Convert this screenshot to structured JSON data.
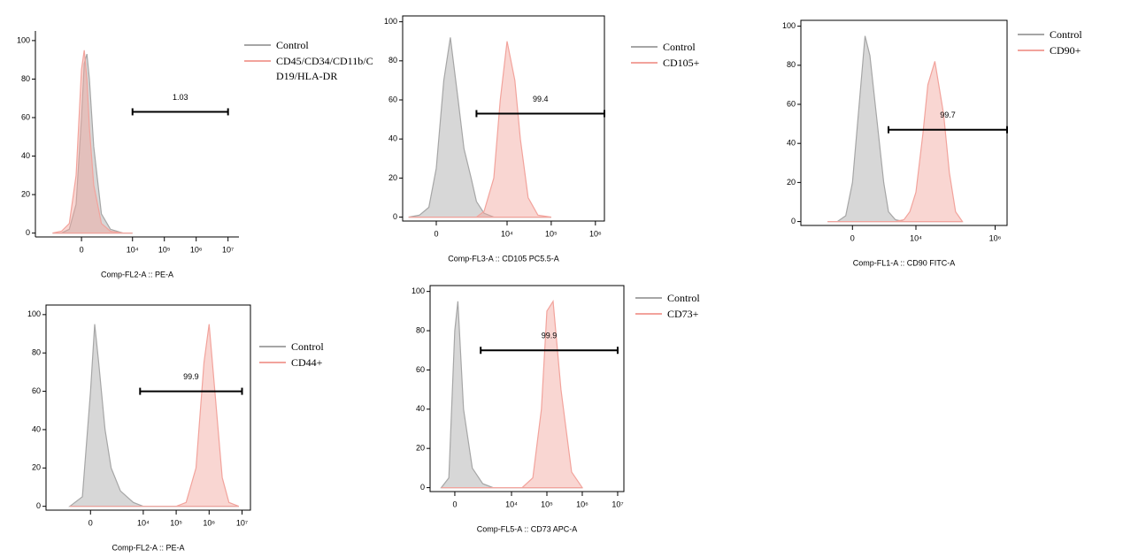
{
  "chart_data": [
    {
      "type": "area",
      "xlabel": "Comp-FL2-A :: PE-A",
      "x": [
        -2000,
        -1000,
        -500,
        -200,
        0,
        100,
        200,
        300,
        500,
        1000,
        2000,
        5000,
        10000
      ],
      "series": [
        {
          "name": "Control",
          "color": "#a6a6a6",
          "values": [
            0,
            0,
            2,
            15,
            60,
            88,
            93,
            80,
            45,
            10,
            2,
            0,
            0
          ]
        },
        {
          "name": "CD45/CD34/CD11b/CD19/HLA-DR",
          "color": "#f2a39c",
          "values": [
            0,
            1,
            5,
            30,
            85,
            95,
            80,
            55,
            25,
            5,
            1,
            0,
            0
          ]
        }
      ],
      "xlim": [
        -7000,
        22000000
      ],
      "ylim": [
        -2,
        105
      ],
      "xticks": [
        0,
        {
          "value": 10000,
          "label": "10⁴"
        },
        {
          "value": 100000,
          "label": "10⁵"
        },
        {
          "value": 1000000,
          "label": "10⁶"
        },
        {
          "value": 10000000,
          "label": "10⁷"
        }
      ],
      "yticks": [
        0,
        20,
        40,
        60,
        80,
        100
      ],
      "gate": {
        "value": 1.03,
        "x": [
          10000,
          10000000
        ],
        "y": 63
      }
    },
    {
      "type": "area",
      "xlabel": "Comp-FL3-A :: CD105 PC5.5-A",
      "x": [
        -1000,
        -500,
        -200,
        0,
        200,
        400,
        700,
        1000,
        1500,
        2000,
        3000,
        5000,
        7000,
        10000,
        15000,
        20000,
        30000,
        50000,
        100000
      ],
      "series": [
        {
          "name": "Control",
          "color": "#a6a6a6",
          "values": [
            0,
            1,
            5,
            25,
            70,
            92,
            60,
            35,
            20,
            8,
            2,
            0,
            0,
            0,
            0,
            0,
            0,
            0,
            0
          ]
        },
        {
          "name": "CD105+",
          "color": "#f2a39c",
          "values": [
            0,
            0,
            0,
            0,
            0,
            0,
            0,
            0,
            0,
            0,
            3,
            20,
            60,
            90,
            70,
            40,
            10,
            1,
            0
          ]
        }
      ],
      "xlim": [
        -1400,
        1600000
      ],
      "ylim": [
        -2,
        103
      ],
      "xticks": [
        0,
        {
          "value": 10000,
          "label": "10⁴"
        },
        {
          "value": 100000,
          "label": "10⁵"
        },
        {
          "value": 1000000,
          "label": "10⁶"
        }
      ],
      "yticks": [
        0,
        20,
        40,
        60,
        80,
        100
      ],
      "gate": {
        "value": 99.4,
        "x": [
          2000,
          1600000
        ],
        "y": 53
      }
    },
    {
      "type": "area",
      "xlabel": "Comp-FL1-A :: CD90 FITC-A",
      "x": [
        -1000,
        -500,
        -200,
        0,
        200,
        400,
        600,
        1000,
        1500,
        2000,
        3000,
        5000,
        7000,
        10000,
        15000,
        20000,
        30000,
        50000,
        70000,
        100000,
        150000
      ],
      "series": [
        {
          "name": "Control",
          "color": "#a6a6a6",
          "values": [
            0,
            0,
            3,
            20,
            60,
            95,
            85,
            50,
            20,
            5,
            1,
            0,
            0,
            0,
            0,
            0,
            0,
            0,
            0,
            0,
            0
          ]
        },
        {
          "name": "CD90+",
          "color": "#f2a39c",
          "values": [
            0,
            0,
            0,
            0,
            0,
            0,
            0,
            0,
            0,
            0,
            0,
            1,
            5,
            15,
            45,
            70,
            82,
            55,
            25,
            5,
            0
          ]
        }
      ],
      "xlim": [
        -5000,
        2000000
      ],
      "ylim": [
        -2,
        103
      ],
      "xticks": [
        0,
        {
          "value": 10000,
          "label": "10⁴"
        },
        {
          "value": 1000000,
          "label": "10⁶"
        }
      ],
      "yticks": [
        0,
        20,
        40,
        60,
        80,
        100
      ],
      "gate": {
        "value": 99.7,
        "x": [
          2000,
          2000000
        ],
        "y": 47
      }
    },
    {
      "type": "area",
      "xlabel": "Comp-FL2-A :: PE-A",
      "x": [
        -1000,
        -300,
        0,
        150,
        300,
        600,
        1000,
        2000,
        5000,
        10000,
        100000,
        200000,
        400000,
        700000,
        1000000,
        1500000,
        2500000,
        4000000,
        8000000
      ],
      "series": [
        {
          "name": "Control",
          "color": "#a6a6a6",
          "values": [
            0,
            5,
            60,
            95,
            75,
            40,
            20,
            8,
            2,
            0,
            0,
            0,
            0,
            0,
            0,
            0,
            0,
            0,
            0
          ]
        },
        {
          "name": "CD44+",
          "color": "#f2a39c",
          "values": [
            0,
            0,
            0,
            0,
            0,
            0,
            0,
            0,
            0,
            0,
            0,
            2,
            20,
            75,
            95,
            60,
            15,
            2,
            0
          ]
        }
      ],
      "xlim": [
        -5600,
        18000000
      ],
      "ylim": [
        -2,
        105
      ],
      "xticks": [
        0,
        {
          "value": 10000,
          "label": "10⁴"
        },
        {
          "value": 100000,
          "label": "10⁵"
        },
        {
          "value": 1000000,
          "label": "10⁶"
        },
        {
          "value": 10000000,
          "label": "10⁷"
        }
      ],
      "yticks": [
        0,
        20,
        40,
        60,
        80,
        100
      ],
      "gate": {
        "value": 99.9,
        "x": [
          8000,
          10000000
        ],
        "y": 60
      }
    },
    {
      "type": "area",
      "xlabel": "Comp-FL5-A :: CD73 APC-A",
      "x": [
        -500,
        -200,
        0,
        100,
        300,
        700,
        1500,
        3000,
        20000,
        40000,
        70000,
        100000,
        150000,
        250000,
        500000,
        1000000
      ],
      "series": [
        {
          "name": "Control",
          "color": "#a6a6a6",
          "values": [
            0,
            5,
            80,
            95,
            40,
            10,
            2,
            0,
            0,
            0,
            0,
            0,
            0,
            0,
            0,
            0
          ]
        },
        {
          "name": "CD73+",
          "color": "#f2a39c",
          "values": [
            0,
            0,
            0,
            0,
            0,
            0,
            0,
            0,
            0,
            5,
            40,
            90,
            95,
            50,
            8,
            0
          ]
        }
      ],
      "xlim": [
        -1200,
        15000000
      ],
      "ylim": [
        -2,
        103
      ],
      "xticks": [
        0,
        {
          "value": 10000,
          "label": "10⁴"
        },
        {
          "value": 100000,
          "label": "10⁵"
        },
        {
          "value": 1000000,
          "label": "10⁶"
        },
        {
          "value": 10000000,
          "label": "10⁷"
        }
      ],
      "yticks": [
        0,
        20,
        40,
        60,
        80,
        100
      ],
      "gate": {
        "value": 99.9,
        "x": [
          1300,
          10000000
        ],
        "y": 70
      }
    }
  ]
}
